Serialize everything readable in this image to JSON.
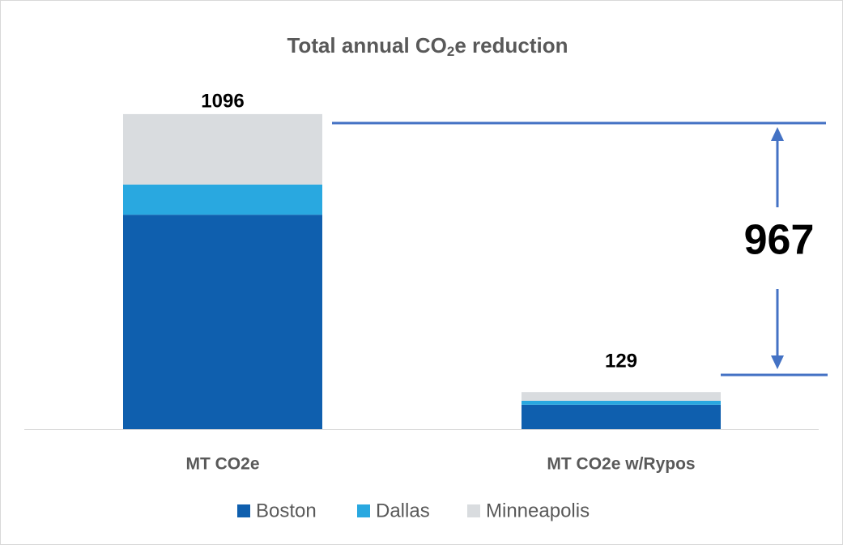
{
  "chart_data": {
    "type": "stacked_bar",
    "title": [
      "Total annual CO",
      "2",
      "e reduction"
    ],
    "categories": [
      "MT CO2e",
      "MT CO2e w/Rypos"
    ],
    "series": [
      {
        "name": "Boston",
        "color": "#0f5fae",
        "values": [
          746,
          85
        ]
      },
      {
        "name": "Dallas",
        "color": "#29a8e0",
        "values": [
          105,
          14
        ]
      },
      {
        "name": "Minneapolis",
        "color": "#d9dcdf",
        "values": [
          245,
          30
        ]
      }
    ],
    "totals": [
      1096,
      129
    ],
    "annotation": "967",
    "ylim": [
      0,
      1200
    ],
    "legend": "bottom"
  }
}
